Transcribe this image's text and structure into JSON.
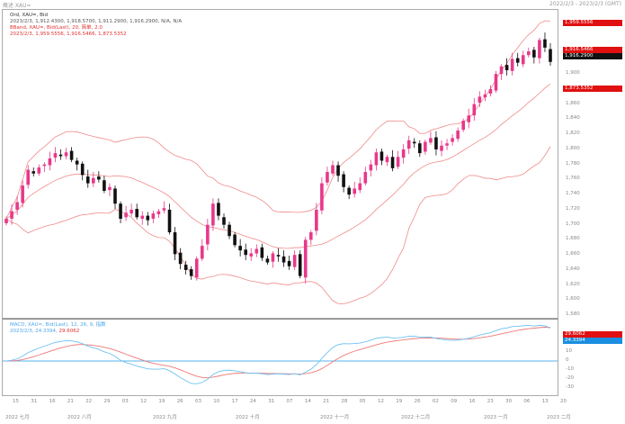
{
  "window": {
    "title": "概述 XAU=",
    "range": "2022/2/3 - 2023/2/3 (GMT)"
  },
  "legend": {
    "line1": "Ord, XAU=, Bid",
    "line2": "2023/2/3, 1,912.4300, 1,918.5700, 1,911.2900, 1,916.2900, N/A, N/A",
    "line3": "BBand, XAU=, Bid(Last), 20, 简单, 2.0",
    "line4": "2023/2/3, 1,959.5556, 1,916.5466, 1,873.5352",
    "macd1": "MACD, XAU=, Bid(Last), 12, 26, 9, 指数",
    "macd2a": "2023/2/3, 24.3394,",
    "macd2b": "29.6062"
  },
  "price_tags": {
    "upper": "1,959.5556",
    "mid": "1,916.5466",
    "last": "1,916.2900",
    "lower": "1,873.5352",
    "macd_signal": "29.6062",
    "macd": "24.3394"
  },
  "colors": {
    "up": "#e8388a",
    "down": "#111111",
    "band": "#f08a8a",
    "macd": "#6ec2f2",
    "signal": "#f07878",
    "zero": "#5ab4ee",
    "tag_red": "#e01010",
    "tag_blue": "#1a8ee0"
  },
  "chart_data": {
    "type": "candlestick",
    "y_ticks": [
      "1,900",
      "1,860",
      "1,840",
      "1,820",
      "1,800",
      "1,780",
      "1,760",
      "1,740",
      "1,720",
      "1,700",
      "1,680",
      "1,660",
      "1,640",
      "1,620",
      "1,600",
      "1,580"
    ],
    "ylim": [
      1579,
      1985
    ],
    "macd_ticks": [
      "10",
      "0",
      "-10",
      "-20",
      "-30"
    ],
    "macd_ylim": [
      -38,
      46
    ],
    "close": [
      1708,
      1718,
      1730,
      1752,
      1773,
      1768,
      1776,
      1780,
      1788,
      1795,
      1791,
      1796,
      1786,
      1780,
      1766,
      1755,
      1762,
      1760,
      1745,
      1750,
      1728,
      1708,
      1716,
      1720,
      1710,
      1712,
      1706,
      1715,
      1718,
      1722,
      1690,
      1661,
      1648,
      1640,
      1632,
      1655,
      1672,
      1700,
      1728,
      1712,
      1700,
      1685,
      1673,
      1666,
      1660,
      1662,
      1668,
      1656,
      1650,
      1662,
      1658,
      1650,
      1645,
      1660,
      1632,
      1680,
      1690,
      1720,
      1755,
      1770,
      1779,
      1765,
      1750,
      1740,
      1748,
      1755,
      1770,
      1780,
      1796,
      1785,
      1790,
      1775,
      1790,
      1800,
      1812,
      1808,
      1795,
      1810,
      1815,
      1800,
      1805,
      1808,
      1815,
      1825,
      1838,
      1845,
      1860,
      1870,
      1873,
      1880,
      1900,
      1910,
      1905,
      1920,
      1915,
      1925,
      1930,
      1922,
      1945,
      1935,
      1916
    ],
    "day_labels": [
      "15",
      "31",
      "16",
      "21",
      "22",
      "29",
      "03",
      "12",
      "19",
      "26",
      "03",
      "10",
      "17",
      "24",
      "31",
      "07",
      "14",
      "21",
      "28",
      "05",
      "12",
      "19",
      "26",
      "02",
      "09",
      "16",
      "23",
      "30",
      "06",
      "13",
      "20"
    ],
    "month_labels": [
      "2022 七月",
      "2022 八月",
      "2022 九月",
      "2022 十月",
      "2022 十一月",
      "2022 十二月",
      "2023 一月",
      "2023 二月"
    ]
  }
}
